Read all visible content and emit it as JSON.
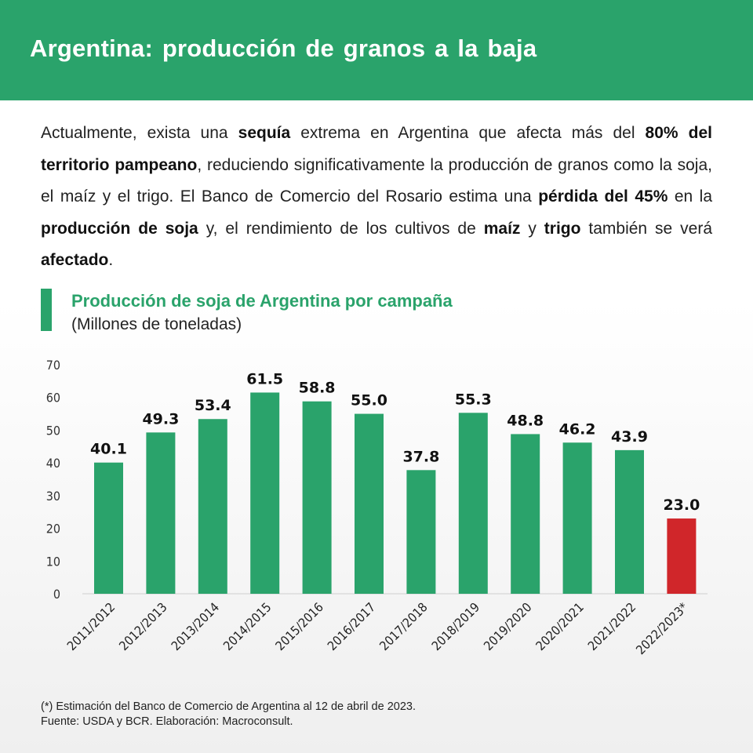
{
  "header": {
    "title": "Argentina: producción de granos a la baja"
  },
  "intro": [
    {
      "t": "Actualmente, exista una ",
      "b": false
    },
    {
      "t": "sequía",
      "b": true
    },
    {
      "t": " extrema en Argentina que afecta más del ",
      "b": false
    },
    {
      "t": "80% del territorio pampeano",
      "b": true
    },
    {
      "t": ", reduciendo significativamente la producción de granos como la soja, el maíz y el trigo. El Banco de Comercio del Rosario estima una ",
      "b": false
    },
    {
      "t": "pérdida del 45%",
      "b": true
    },
    {
      "t": " en la ",
      "b": false
    },
    {
      "t": "producción de soja",
      "b": true
    },
    {
      "t": " y, el rendimiento de los cultivos de ",
      "b": false
    },
    {
      "t": "maíz",
      "b": true
    },
    {
      "t": " y ",
      "b": false
    },
    {
      "t": "trigo",
      "b": true
    },
    {
      "t": " también se verá ",
      "b": false
    },
    {
      "t": "afectado",
      "b": true
    },
    {
      "t": ".",
      "b": false
    }
  ],
  "chart_data": {
    "type": "bar",
    "title": "Producción de soja de Argentina por campaña",
    "subtitle": "(Millones de toneladas)",
    "categories": [
      "2011/2012",
      "2012/2013",
      "2013/2014",
      "2014/2015",
      "2015/2016",
      "2016/2017",
      "2017/2018",
      "2018/2019",
      "2019/2020",
      "2020/2021",
      "2021/2022",
      "2022/2023*"
    ],
    "values": [
      40.1,
      49.3,
      53.4,
      61.5,
      58.8,
      55.0,
      37.8,
      55.3,
      48.8,
      46.2,
      43.9,
      23.0
    ],
    "data_labels": [
      "40.1",
      "49.3",
      "53.4",
      "61.5",
      "58.8",
      "55.0",
      "37.8",
      "55.3",
      "48.8",
      "46.2",
      "43.9",
      "23.0"
    ],
    "y_ticks": [
      0,
      10,
      20,
      30,
      40,
      50,
      60,
      70
    ],
    "ylim": [
      0,
      70
    ],
    "grid": false,
    "colors": {
      "actual": "#2aa36b",
      "estimate": "#d0262a"
    },
    "highlight_index": 11
  },
  "footnote": {
    "line1": "(*) Estimación del Banco de Comercio de Argentina al 12 de abril de 2023.",
    "line2": "Fuente: USDA y BCR. Elaboración: Macroconsult."
  }
}
